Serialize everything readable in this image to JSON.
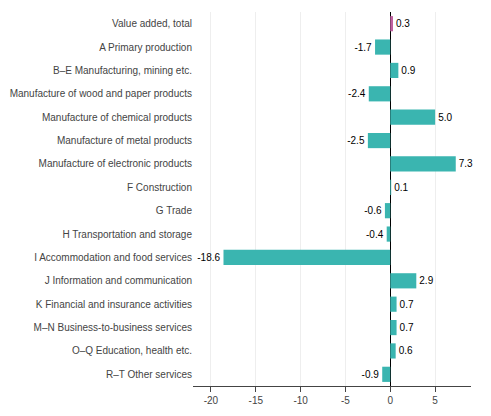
{
  "chart_data": {
    "type": "bar",
    "orientation": "horizontal",
    "categories": [
      "R–T Other services",
      "O–Q Education, health etc.",
      "M–N Business-to-business services",
      "K Financial and insurance activities",
      "J Information and communication",
      "I Accommodation and food services",
      "H Transportation and storage",
      "G Trade",
      "F Construction",
      "Manufacture of electronic products",
      "Manufacture of metal products",
      "Manufacture of chemical products",
      "Manufacture of wood and paper products",
      "B–E Manufacturing, mining etc.",
      "A Primary production",
      "Value added, total"
    ],
    "values": [
      -0.9,
      0.6,
      0.7,
      0.7,
      2.9,
      -18.6,
      -0.4,
      -0.6,
      0.1,
      7.3,
      -2.5,
      5.0,
      -2.4,
      0.9,
      -1.7,
      0.3
    ],
    "value_labels": [
      "-0.9",
      "0.6",
      "0.7",
      "0.7",
      "2.9",
      "-18.6",
      "-0.4",
      "-0.6",
      "0.1",
      "7.3",
      "-2.5",
      "5.0",
      "-2.4",
      "0.9",
      "-1.7",
      "0.3"
    ],
    "colors": [
      "#3ab5b0",
      "#3ab5b0",
      "#3ab5b0",
      "#3ab5b0",
      "#3ab5b0",
      "#3ab5b0",
      "#3ab5b0",
      "#3ab5b0",
      "#3ab5b0",
      "#3ab5b0",
      "#3ab5b0",
      "#3ab5b0",
      "#3ab5b0",
      "#3ab5b0",
      "#3ab5b0",
      "#c060a0"
    ],
    "data_labels": true,
    "xlim": [
      -22,
      9
    ],
    "xticks": [
      -20,
      -15,
      -10,
      -5,
      0,
      5
    ],
    "grid": true
  }
}
